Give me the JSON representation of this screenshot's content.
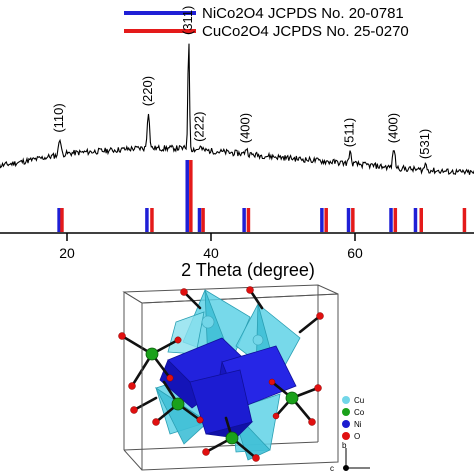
{
  "chart_data": {
    "type": "line",
    "xlabel": "2 Theta (degree)",
    "xlim": [
      10,
      78
    ],
    "xticks": [
      20,
      40,
      60
    ],
    "legend": {
      "placement": "top-center",
      "entries": [
        {
          "name": "NiCo2O4 JCPDS No. 20-0781",
          "color": "#1f1fd6"
        },
        {
          "name": "CuCo2O4 JCPDS No. 25-0270",
          "color": "#e41a1a"
        }
      ]
    },
    "peaks": [
      {
        "label": "(110)",
        "x": 19.0,
        "y": 0.26
      },
      {
        "label": "(220)",
        "x": 31.3,
        "y": 0.46
      },
      {
        "label": "(311)",
        "x": 36.9,
        "y": 1.0
      },
      {
        "label": "(222)",
        "x": 38.5,
        "y": 0.19
      },
      {
        "label": "(400)",
        "x": 44.9,
        "y": 0.18
      },
      {
        "label": "(511)",
        "x": 59.3,
        "y": 0.15
      },
      {
        "label": "(400)",
        "x": 65.4,
        "y": 0.18
      },
      {
        "label": "(531)",
        "x": 69.8,
        "y": 0.06
      }
    ],
    "baseline": [
      [
        10,
        0.04
      ],
      [
        20,
        0.14
      ],
      [
        30,
        0.18
      ],
      [
        36,
        0.18
      ],
      [
        44,
        0.14
      ],
      [
        52,
        0.1
      ],
      [
        60,
        0.06
      ],
      [
        68,
        0.02
      ],
      [
        74,
        0.0
      ],
      [
        78,
        -0.01
      ]
    ],
    "reference_lines": {
      "NiCo2O4": [
        18.9,
        31.1,
        36.7,
        38.4,
        44.6,
        55.4,
        59.1,
        65.0,
        68.4
      ],
      "CuCo2O4": [
        19.3,
        31.8,
        37.2,
        38.9,
        45.2,
        56.0,
        59.7,
        65.6,
        69.2,
        75.2
      ],
      "strong": 36.9
    }
  },
  "crystal_legend": {
    "items": [
      {
        "name": "Cu",
        "color": "#72d6e8"
      },
      {
        "name": "Co",
        "color": "#1aa11a"
      },
      {
        "name": "Ni",
        "color": "#1b1bcf"
      },
      {
        "name": "O",
        "color": "#e01010"
      }
    ]
  },
  "axes_labels": {
    "b": "b",
    "c": "c"
  }
}
